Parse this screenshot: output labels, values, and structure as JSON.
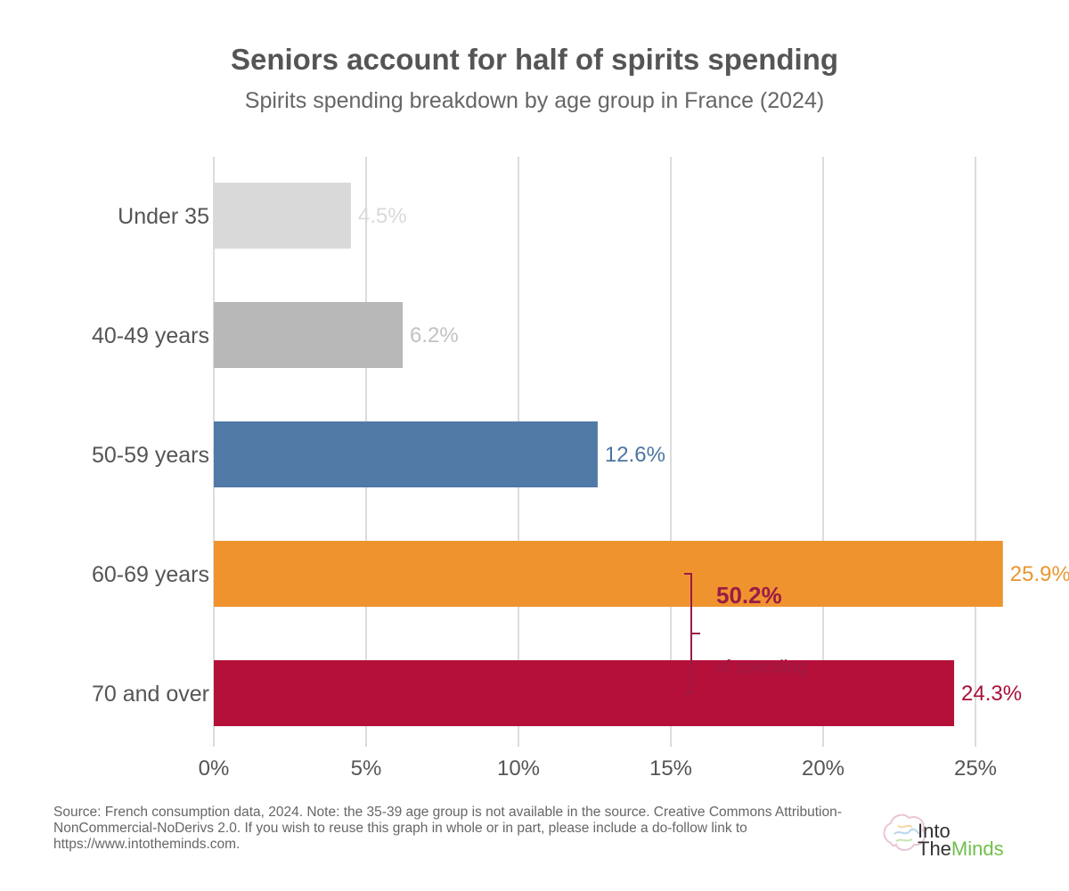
{
  "header": {
    "title": "Seniors account for half of spirits spending",
    "subtitle": "Spirits spending breakdown by age group in France (2024)"
  },
  "chart_data": {
    "type": "bar",
    "orientation": "horizontal",
    "categories": [
      "Under 35",
      "40-49 years",
      "50-59 years",
      "60-69 years",
      "70 and over"
    ],
    "values": [
      4.5,
      6.2,
      12.6,
      25.9,
      24.3
    ],
    "value_labels": [
      "4.5%",
      "6.2%",
      "12.6%",
      "25.9%",
      "24.3%"
    ],
    "bar_colors": [
      "#d9d9d9",
      "#b8b8b8",
      "#5079a6",
      "#ef932f",
      "#b5103a"
    ],
    "label_colors": [
      "#d9d9d9",
      "#c2c2c2",
      "#4a75a3",
      "#e8972f",
      "#a81038"
    ],
    "x_ticks": [
      0,
      5,
      10,
      15,
      20,
      25
    ],
    "x_tick_labels": [
      "0%",
      "5%",
      "10%",
      "15%",
      "20%",
      "25%"
    ],
    "xlim": [
      0,
      30
    ],
    "grid": true,
    "annotation": {
      "value": "50.2%",
      "text": "of spending",
      "brackets_categories": [
        "60-69 years",
        "70 and over"
      ],
      "color": "#9b1b45"
    }
  },
  "footer": {
    "source": "Source: French consumption data, 2024. Note: the 35-39 age group is not available in the source. Creative Commons Attribution-NonCommercial-NoDerivs 2.0. If you wish to reuse this graph in whole or in part, please include a do-follow link to https://www.intotheminds.com."
  },
  "logo": {
    "word1": "Into",
    "word2a": "The",
    "word2b": "Minds",
    "icon": "brain-icon"
  }
}
